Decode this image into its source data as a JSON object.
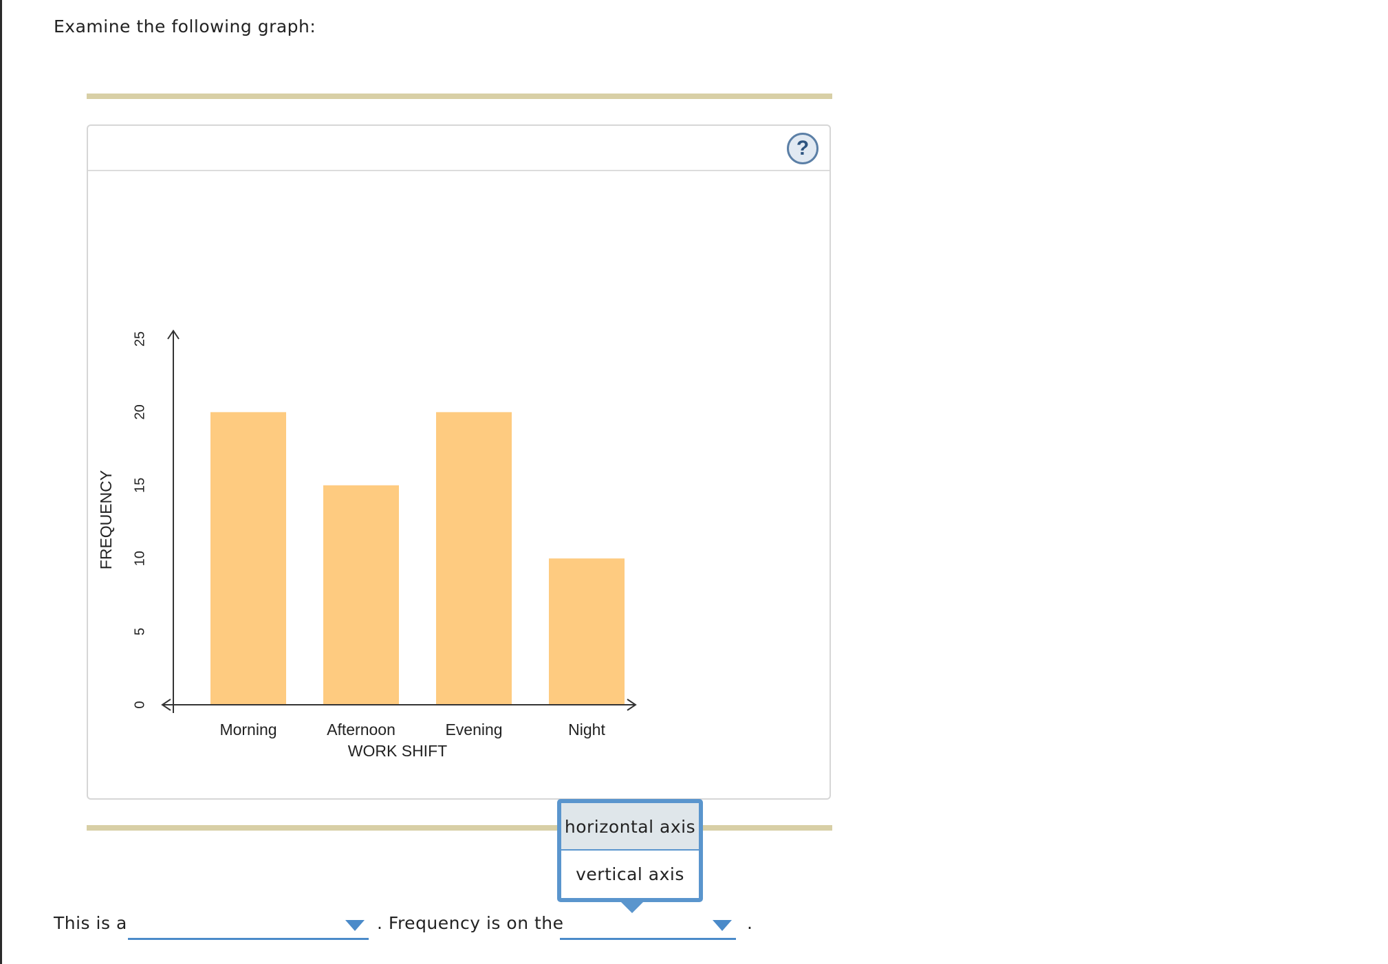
{
  "prompt": "Examine the following graph:",
  "help": {
    "symbol": "?"
  },
  "chart_data": {
    "type": "bar",
    "categories": [
      "Morning",
      "Afternoon",
      "Evening",
      "Night"
    ],
    "values": [
      20,
      15,
      20,
      10
    ],
    "title": "",
    "xlabel": "WORK SHIFT",
    "ylabel": "FREQUENCY",
    "ylim": [
      0,
      25
    ],
    "yticks": [
      0,
      5,
      10,
      15,
      20,
      25
    ],
    "bar_color": "#fecb80",
    "axis_color": "#333333"
  },
  "sentence": {
    "part1": "This is a",
    "part2": ". Frequency is on the",
    "part3": ".",
    "blank1_value": "",
    "blank2_value": ""
  },
  "dropdown": {
    "options": [
      "horizontal axis",
      "vertical axis"
    ]
  },
  "colors": {
    "accent": "#4a8ac9",
    "rule": "#d8cfa6",
    "highlight": "#dfe6ea"
  }
}
